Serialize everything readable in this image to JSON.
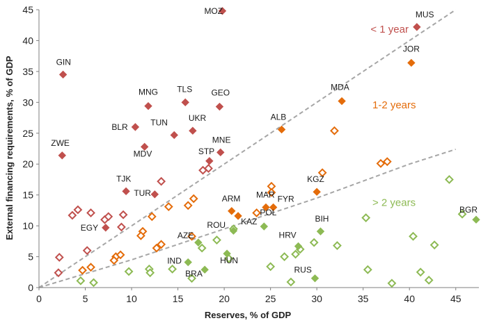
{
  "chart_data": {
    "type": "scatter",
    "xlabel": "Reserves, % of GDP",
    "ylabel": "External financing requirements, % of GDP",
    "xlim": [
      0,
      47.5
    ],
    "ylim": [
      0,
      45
    ],
    "xticks": [
      "0",
      "5",
      "10",
      "15",
      "20",
      "25",
      "30",
      "35",
      "40",
      "45"
    ],
    "yticks": [
      "0",
      "5",
      "10",
      "15",
      "20",
      "25",
      "30",
      "35",
      "40",
      "45"
    ],
    "grid": false,
    "colors": {
      "red": "#c0504d",
      "orange": "#e46c0a",
      "green": "#8dba54",
      "trend": "#a6a6a6"
    },
    "group_labels": [
      {
        "text": "< 1 year",
        "x": 35.8,
        "y": 41.3,
        "color": "#c0504d"
      },
      {
        "text": "1-2 years",
        "x": 36.0,
        "y": 29.0,
        "color": "#e46c0a"
      },
      {
        "text": "> 2 years",
        "x": 36.0,
        "y": 13.2,
        "color": "#8dba54"
      }
    ],
    "trend_lines": [
      {
        "points": [
          [
            0,
            0
          ],
          [
            45,
            45
          ]
        ]
      },
      {
        "points": [
          [
            0,
            0
          ],
          [
            10,
            4.5
          ],
          [
            20,
            9.5
          ],
          [
            30,
            14.5
          ],
          [
            40,
            20
          ],
          [
            45,
            22.4
          ]
        ]
      }
    ],
    "series": [
      {
        "group": "< 1 year",
        "color": "#c0504d",
        "labeled": [
          {
            "label": "MOZ",
            "x": 19.8,
            "y": 44.8
          },
          {
            "label": "MUS",
            "x": 40.8,
            "y": 42.2
          },
          {
            "label": "GIN",
            "x": 2.6,
            "y": 34.5
          },
          {
            "label": "MNG",
            "x": 11.8,
            "y": 29.4
          },
          {
            "label": "TLS",
            "x": 15.8,
            "y": 30.0
          },
          {
            "label": "GEO",
            "x": 19.5,
            "y": 29.3
          },
          {
            "label": "BLR",
            "x": 10.4,
            "y": 26.0
          },
          {
            "label": "TUN",
            "x": 14.6,
            "y": 24.7
          },
          {
            "label": "UKR",
            "x": 16.6,
            "y": 25.4
          },
          {
            "label": "MDV",
            "x": 11.4,
            "y": 22.8
          },
          {
            "label": "ZWE",
            "x": 2.5,
            "y": 21.4
          },
          {
            "label": "MNE",
            "x": 19.6,
            "y": 21.9
          },
          {
            "label": "STP",
            "x": 18.4,
            "y": 20.5
          },
          {
            "label": "TJK",
            "x": 9.4,
            "y": 15.6
          },
          {
            "label": "TUR",
            "x": 12.5,
            "y": 15.1
          },
          {
            "label": "EGY",
            "x": 7.2,
            "y": 9.7
          }
        ],
        "others": [
          {
            "x": 13.2,
            "y": 17.2
          },
          {
            "x": 17.7,
            "y": 19.0
          },
          {
            "x": 18.3,
            "y": 19.3
          },
          {
            "x": 3.6,
            "y": 11.7
          },
          {
            "x": 4.2,
            "y": 12.6
          },
          {
            "x": 5.6,
            "y": 12.1
          },
          {
            "x": 7.1,
            "y": 11.0
          },
          {
            "x": 7.5,
            "y": 11.5
          },
          {
            "x": 9.1,
            "y": 11.8
          },
          {
            "x": 8.9,
            "y": 9.8
          },
          {
            "x": 5.2,
            "y": 6.0
          },
          {
            "x": 2.2,
            "y": 4.9
          },
          {
            "x": 2.1,
            "y": 2.4
          }
        ]
      },
      {
        "group": "1-2 years",
        "color": "#e46c0a",
        "labeled": [
          {
            "label": "JOR",
            "x": 40.2,
            "y": 36.4
          },
          {
            "label": "MDA",
            "x": 32.7,
            "y": 30.2
          },
          {
            "label": "ALB",
            "x": 26.2,
            "y": 25.6
          },
          {
            "label": "KGZ",
            "x": 30.0,
            "y": 15.5
          },
          {
            "label": "ARM",
            "x": 20.8,
            "y": 12.4
          },
          {
            "label": "KAZ",
            "x": 21.5,
            "y": 11.6
          },
          {
            "label": "MAR",
            "x": 24.5,
            "y": 13.0
          },
          {
            "label": "FYR",
            "x": 25.3,
            "y": 13.0
          }
        ],
        "others": [
          {
            "x": 31.9,
            "y": 25.4
          },
          {
            "x": 30.6,
            "y": 18.6
          },
          {
            "x": 36.9,
            "y": 20.1
          },
          {
            "x": 37.6,
            "y": 20.4
          },
          {
            "x": 25.1,
            "y": 16.4
          },
          {
            "x": 25.1,
            "y": 15.4
          },
          {
            "x": 23.5,
            "y": 12.1
          },
          {
            "x": 16.7,
            "y": 14.4
          },
          {
            "x": 16.1,
            "y": 13.3
          },
          {
            "x": 14.0,
            "y": 13.1
          },
          {
            "x": 12.2,
            "y": 11.5
          },
          {
            "x": 11.2,
            "y": 9.1
          },
          {
            "x": 11.0,
            "y": 8.4
          },
          {
            "x": 16.5,
            "y": 8.3
          },
          {
            "x": 12.7,
            "y": 6.4
          },
          {
            "x": 13.2,
            "y": 7.0
          },
          {
            "x": 8.3,
            "y": 5.0
          },
          {
            "x": 8.8,
            "y": 5.3
          },
          {
            "x": 8.1,
            "y": 4.4
          },
          {
            "x": 5.6,
            "y": 3.3
          },
          {
            "x": 4.7,
            "y": 2.8
          }
        ]
      },
      {
        "group": "> 2 years",
        "color": "#8dba54",
        "labeled": [
          {
            "label": "BGR",
            "x": 47.2,
            "y": 11.0
          },
          {
            "label": "POL",
            "x": 24.3,
            "y": 9.9
          },
          {
            "label": "ROU",
            "x": 21.0,
            "y": 9.2
          },
          {
            "label": "BIH",
            "x": 30.4,
            "y": 9.1
          },
          {
            "label": "AZE",
            "x": 17.2,
            "y": 7.3
          },
          {
            "label": "HRV",
            "x": 28.0,
            "y": 6.7
          },
          {
            "label": "HUN",
            "x": 20.3,
            "y": 5.5
          },
          {
            "label": "IND",
            "x": 16.1,
            "y": 4.1
          },
          {
            "label": "BRA",
            "x": 17.9,
            "y": 2.9
          },
          {
            "label": "RUS",
            "x": 29.8,
            "y": 1.5
          }
        ],
        "others": [
          {
            "x": 44.3,
            "y": 17.5
          },
          {
            "x": 45.7,
            "y": 11.9
          },
          {
            "x": 35.3,
            "y": 11.3
          },
          {
            "x": 40.4,
            "y": 8.3
          },
          {
            "x": 42.7,
            "y": 6.9
          },
          {
            "x": 32.2,
            "y": 6.8
          },
          {
            "x": 29.7,
            "y": 7.3
          },
          {
            "x": 26.5,
            "y": 5.0
          },
          {
            "x": 27.7,
            "y": 5.4
          },
          {
            "x": 28.2,
            "y": 6.2
          },
          {
            "x": 25.0,
            "y": 3.4
          },
          {
            "x": 35.5,
            "y": 2.9
          },
          {
            "x": 41.2,
            "y": 2.5
          },
          {
            "x": 42.1,
            "y": 1.2
          },
          {
            "x": 38.1,
            "y": 0.7
          },
          {
            "x": 27.2,
            "y": 0.9
          },
          {
            "x": 21.0,
            "y": 9.5
          },
          {
            "x": 19.2,
            "y": 7.7
          },
          {
            "x": 17.6,
            "y": 6.4
          },
          {
            "x": 20.5,
            "y": 4.7
          },
          {
            "x": 14.4,
            "y": 3.0
          },
          {
            "x": 11.9,
            "y": 3.0
          },
          {
            "x": 12.0,
            "y": 2.4
          },
          {
            "x": 9.7,
            "y": 2.6
          },
          {
            "x": 16.5,
            "y": 1.5
          },
          {
            "x": 5.9,
            "y": 0.8
          },
          {
            "x": 4.5,
            "y": 1.1
          }
        ]
      }
    ]
  }
}
